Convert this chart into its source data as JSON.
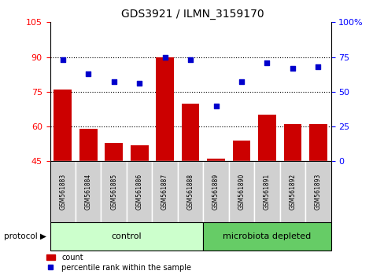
{
  "title": "GDS3921 / ILMN_3159170",
  "samples": [
    "GSM561883",
    "GSM561884",
    "GSM561885",
    "GSM561886",
    "GSM561887",
    "GSM561888",
    "GSM561889",
    "GSM561890",
    "GSM561891",
    "GSM561892",
    "GSM561893"
  ],
  "counts": [
    76,
    59,
    53,
    52,
    90,
    70,
    46,
    54,
    65,
    61,
    61
  ],
  "percentile_ranks": [
    73,
    63,
    57,
    56,
    75,
    73,
    40,
    57,
    71,
    67,
    68
  ],
  "ylim_left": [
    45,
    105
  ],
  "ylim_right": [
    0,
    100
  ],
  "yticks_left": [
    45,
    60,
    75,
    90,
    105
  ],
  "yticks_right": [
    0,
    25,
    50,
    75,
    100
  ],
  "bar_color": "#cc0000",
  "dot_color": "#0000cc",
  "control_label": "control",
  "microbiota_label": "microbiota depleted",
  "protocol_label": "protocol",
  "legend_count": "count",
  "legend_percentile": "percentile rank within the sample",
  "control_color": "#ccffcc",
  "microbiota_color": "#66cc66",
  "sample_bg_color": "#d0d0d0",
  "n_control": 6,
  "n_micro": 5,
  "figsize": [
    4.89,
    3.54
  ],
  "dpi": 100
}
